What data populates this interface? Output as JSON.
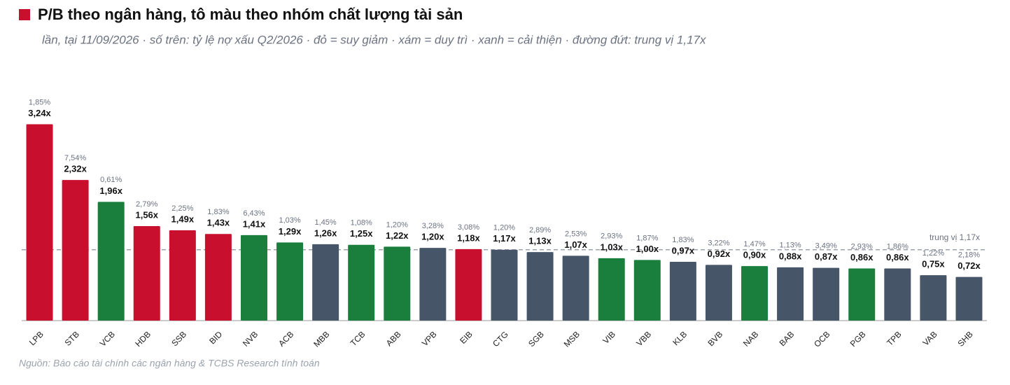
{
  "chart_data": {
    "type": "bar",
    "title": "P/B theo ngân hàng, tô màu theo nhóm chất lượng tài sản",
    "subtitle": "lần, tại 11/09/2026 · số trên: tỷ lệ nợ xấu Q2/2026 · đỏ = suy giảm · xám = duy trì · xanh = cải thiện · đường đứt: trung vị 1,17x",
    "source": "Nguồn: Báo cáo tài chính các ngân hàng & TCBS Research tính toán",
    "categories": [
      "LPB",
      "STB",
      "VCB",
      "HDB",
      "SSB",
      "BID",
      "NVB",
      "ACB",
      "MBB",
      "TCB",
      "ABB",
      "VPB",
      "EIB",
      "CTG",
      "SGB",
      "MSB",
      "VIB",
      "VBB",
      "KLB",
      "BVB",
      "NAB",
      "BAB",
      "OCB",
      "PGB",
      "TPB",
      "VAB",
      "SHB"
    ],
    "values": [
      3.24,
      2.32,
      1.96,
      1.56,
      1.49,
      1.43,
      1.41,
      1.29,
      1.26,
      1.25,
      1.22,
      1.2,
      1.18,
      1.17,
      1.13,
      1.07,
      1.03,
      1.0,
      0.97,
      0.92,
      0.9,
      0.88,
      0.87,
      0.86,
      0.86,
      0.75,
      0.72
    ],
    "value_labels": [
      "3,24x",
      "2,32x",
      "1,96x",
      "1,56x",
      "1,49x",
      "1,43x",
      "1,41x",
      "1,29x",
      "1,26x",
      "1,25x",
      "1,22x",
      "1,20x",
      "1,18x",
      "1,17x",
      "1,13x",
      "1,07x",
      "1,03x",
      "1,00x",
      "0,97x",
      "0,92x",
      "0,90x",
      "0,88x",
      "0,87x",
      "0,86x",
      "0,86x",
      "0,75x",
      "0,72x"
    ],
    "colors": [
      "#c8102e",
      "#c8102e",
      "#1a7f3c",
      "#c8102e",
      "#c8102e",
      "#c8102e",
      "#1a7f3c",
      "#1a7f3c",
      "#475569",
      "#1a7f3c",
      "#1a7f3c",
      "#475569",
      "#c8102e",
      "#475569",
      "#475569",
      "#475569",
      "#1a7f3c",
      "#1a7f3c",
      "#475569",
      "#475569",
      "#1a7f3c",
      "#475569",
      "#475569",
      "#1a7f3c",
      "#475569",
      "#475569",
      "#475569"
    ],
    "npl": {
      "values": [
        1.85,
        7.54,
        0.61,
        2.79,
        2.25,
        1.83,
        6.43,
        1.03,
        1.45,
        1.08,
        1.2,
        3.28,
        3.08,
        1.2,
        2.89,
        2.53,
        2.93,
        1.87,
        1.83,
        3.22,
        1.47,
        1.13,
        3.49,
        2.93,
        1.86,
        1.22,
        2.18
      ],
      "value_labels": [
        "1,85%",
        "7,54%",
        "0,61%",
        "2,79%",
        "2,25%",
        "1,83%",
        "6,43%",
        "1,03%",
        "1,45%",
        "1,08%",
        "1,20%",
        "3,28%",
        "3,08%",
        "1,20%",
        "2,89%",
        "2,53%",
        "2,93%",
        "1,87%",
        "1,83%",
        "3,22%",
        "1,47%",
        "1,13%",
        "3,49%",
        "2,93%",
        "1,86%",
        "1,22%",
        "2,18%"
      ]
    },
    "median": {
      "value": 1.17,
      "label": "trung vị 1,17x"
    },
    "ylim": [
      0,
      3.5
    ]
  }
}
